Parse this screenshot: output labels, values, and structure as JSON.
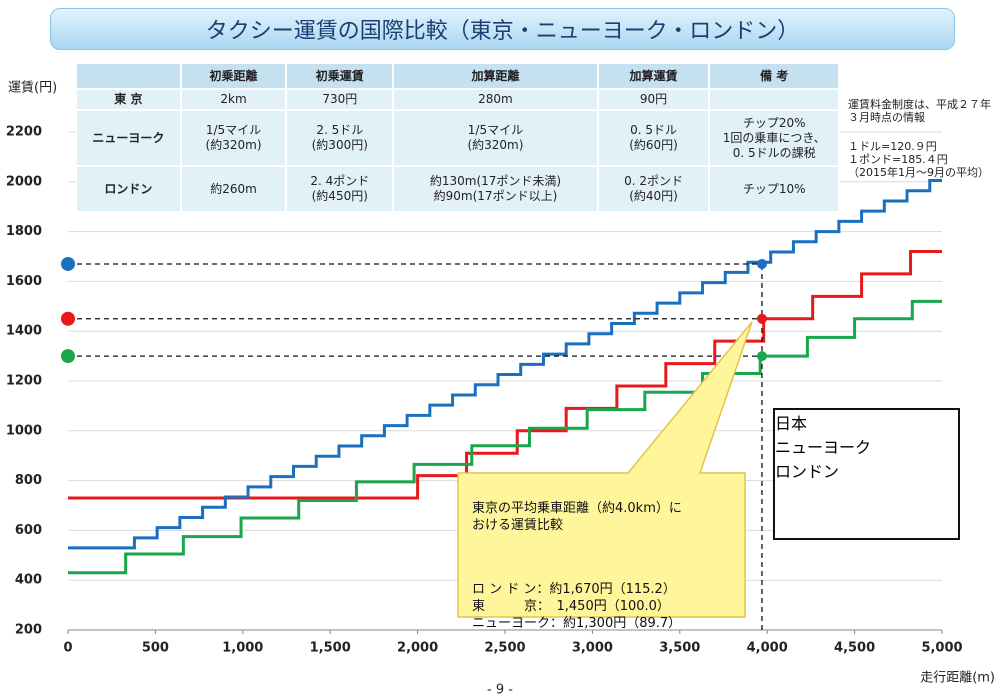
{
  "chart_data": {
    "type": "step",
    "title": "タクシー運賃の国際比較（東京・ニューヨーク・ロンドン）",
    "ylabel": "運賃(円)",
    "xlabel": "走行距離(m)",
    "xlim": [
      0,
      5000
    ],
    "xticks": [
      0,
      500,
      {
        "value": 1000,
        "label": "1,000"
      },
      {
        "value": 1500,
        "label": "1,500"
      },
      {
        "value": 2000,
        "label": "2,000"
      },
      {
        "value": 2500,
        "label": "2,500"
      },
      {
        "value": 3000,
        "label": "3,000"
      },
      {
        "value": 3500,
        "label": "3,500"
      },
      {
        "value": 4000,
        "label": "4,000"
      },
      {
        "value": 4500,
        "label": "4,500"
      },
      {
        "value": 5000,
        "label": "5,000"
      }
    ],
    "ylim": [
      200,
      2200
    ],
    "yticks": [
      200,
      400,
      600,
      800,
      1000,
      1200,
      1400,
      1600,
      1800,
      2000,
      2200
    ],
    "grid": true,
    "legend": "lower right",
    "series": [
      {
        "name": "日本",
        "color": "#e8191c",
        "x": [
          0,
          2000,
          2280,
          2570,
          2850,
          3140,
          3420,
          3700,
          3980,
          4260,
          4540,
          4820
        ],
        "values": [
          730,
          820,
          910,
          1000,
          1090,
          1180,
          1270,
          1360,
          1450,
          1540,
          1630,
          1720
        ]
      },
      {
        "name": "ニューヨーク",
        "color": "#1aa64a",
        "x": [
          0,
          330,
          660,
          990,
          1320,
          1650,
          1980,
          2310,
          2640,
          2970,
          3300,
          3630,
          3960,
          4230,
          4500,
          4830
        ],
        "values": [
          430,
          505,
          575,
          650,
          720,
          795,
          865,
          940,
          1010,
          1085,
          1155,
          1230,
          1300,
          1375,
          1450,
          1520
        ]
      },
      {
        "name": "ロンドン",
        "color": "#1a6fc0",
        "x": [
          0,
          380,
          510,
          640,
          770,
          900,
          1030,
          1160,
          1290,
          1420,
          1550,
          1680,
          1810,
          1940,
          2070,
          2200,
          2330,
          2460,
          2590,
          2720,
          2850,
          2980,
          3110,
          3240,
          3370,
          3500,
          3630,
          3760,
          3890,
          4020,
          4150,
          4280,
          4410,
          4540,
          4670,
          4800,
          4930
        ],
        "values": [
          530,
          570,
          611,
          652,
          693,
          734,
          775,
          816,
          857,
          898,
          939,
          980,
          1021,
          1062,
          1103,
          1144,
          1185,
          1226,
          1267,
          1308,
          1349,
          1390,
          1431,
          1472,
          1513,
          1554,
          1595,
          1636,
          1677,
          1718,
          1759,
          1800,
          1841,
          1882,
          1923,
          1964,
          2005
        ]
      }
    ],
    "reference": {
      "x": 3970,
      "y": [
        1450,
        1300,
        1670
      ]
    },
    "table": {
      "header": [
        "初乗距離",
        "初乗運賃",
        "加算距離",
        "加算運賃",
        "備 考"
      ],
      "rows": [
        [
          "東 京",
          "2km",
          "730円",
          "280m",
          "90円",
          null
        ],
        [
          "ニューヨーク",
          "1/5マイル\n(約320m)",
          "2. 5ドル\n(約300円)",
          "1/5マイル\n(約320m)",
          "0. 5ドル\n(約60円)",
          "チップ20%\n1回の乗車につき、\n0. 5ドルの課税"
        ],
        [
          "ロンドン",
          "約260m",
          "2. 4ポンド\n(約450円)",
          "約130m(17ポンド未満)\n約90m(17ポンド以上)",
          "0. 2ポンド\n(約40円)",
          "チップ10%"
        ]
      ]
    },
    "notes": [
      "運賃料金制度は、平成２７年\n３月時点の情報",
      "１ドル=120.９円\n１ポンド=185.４円\n（2015年1月～9月の平均）"
    ],
    "callout": {
      "title": "東京の平均乗車距離（約4.0km）に\nおける運賃比較",
      "lines": [
        "ロ ン ド ン：約1,670円（115.2）",
        "東　　　京：　1,450円（100.0）",
        "ニューヨーク：約1,300円（89.7）"
      ]
    },
    "page_number": "- 9 -"
  }
}
